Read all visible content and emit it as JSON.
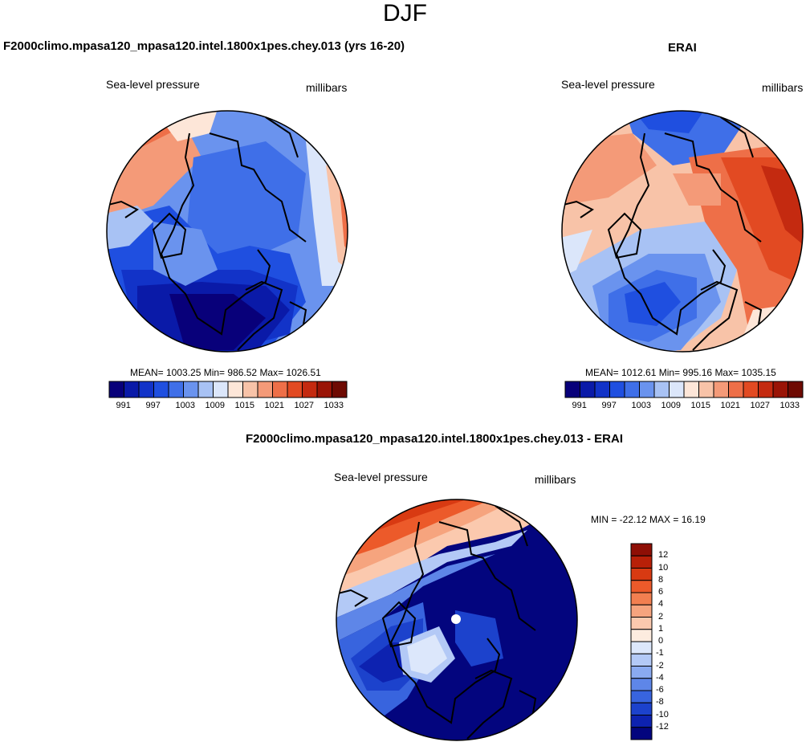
{
  "figure_title": "DJF",
  "panels": [
    {
      "title": "F2000climo.mpasa120_mpasa120.intel.1800x1pes.chey.013 (yrs 16-20)",
      "variable": "Sea-level pressure",
      "units": "millibars",
      "stats": "MEAN= 1003.25  Min= 986.52  Max= 1026.51",
      "colorbar_ticks": [
        "991",
        "997",
        "1003",
        "1009",
        "1015",
        "1021",
        "1027",
        "1033"
      ]
    },
    {
      "title": "ERAI",
      "variable": "Sea-level pressure",
      "units": "millibars",
      "stats": "MEAN= 1012.61  Min= 995.16  Max= 1035.15",
      "colorbar_ticks": [
        "991",
        "997",
        "1003",
        "1009",
        "1015",
        "1021",
        "1027",
        "1033"
      ]
    },
    {
      "title": "F2000climo.mpasa120_mpasa120.intel.1800x1pes.chey.013 - ERAI",
      "variable": "Sea-level pressure",
      "units": "millibars",
      "stats": "MIN = -22.12 MAX =  16.19",
      "colorbar_ticks": [
        "12",
        "10",
        "8",
        "6",
        "4",
        "2",
        "1",
        "0",
        "-1",
        "-2",
        "-4",
        "-6",
        "-8",
        "-10",
        "-12"
      ]
    }
  ],
  "colors": {
    "abs_scale": [
      "#08007a",
      "#0a1aa8",
      "#1233c8",
      "#1f4fe0",
      "#3f6fe8",
      "#6a93ee",
      "#a8c2f4",
      "#dbe6fa",
      "#fde6d8",
      "#f8c3a8",
      "#f49a78",
      "#ee6f48",
      "#e24a22",
      "#c42a10",
      "#9a1406",
      "#6e0a02"
    ],
    "diff_scale": [
      "#8e0f05",
      "#b82008",
      "#d83a12",
      "#ec5a2a",
      "#f27f50",
      "#f6a47e",
      "#fbc9ae",
      "#fdecdf",
      "#dce7fb",
      "#b3c9f6",
      "#8aaaf0",
      "#5e86e8",
      "#3864de",
      "#1c42cc",
      "#0d22b0",
      "#03057e"
    ]
  }
}
